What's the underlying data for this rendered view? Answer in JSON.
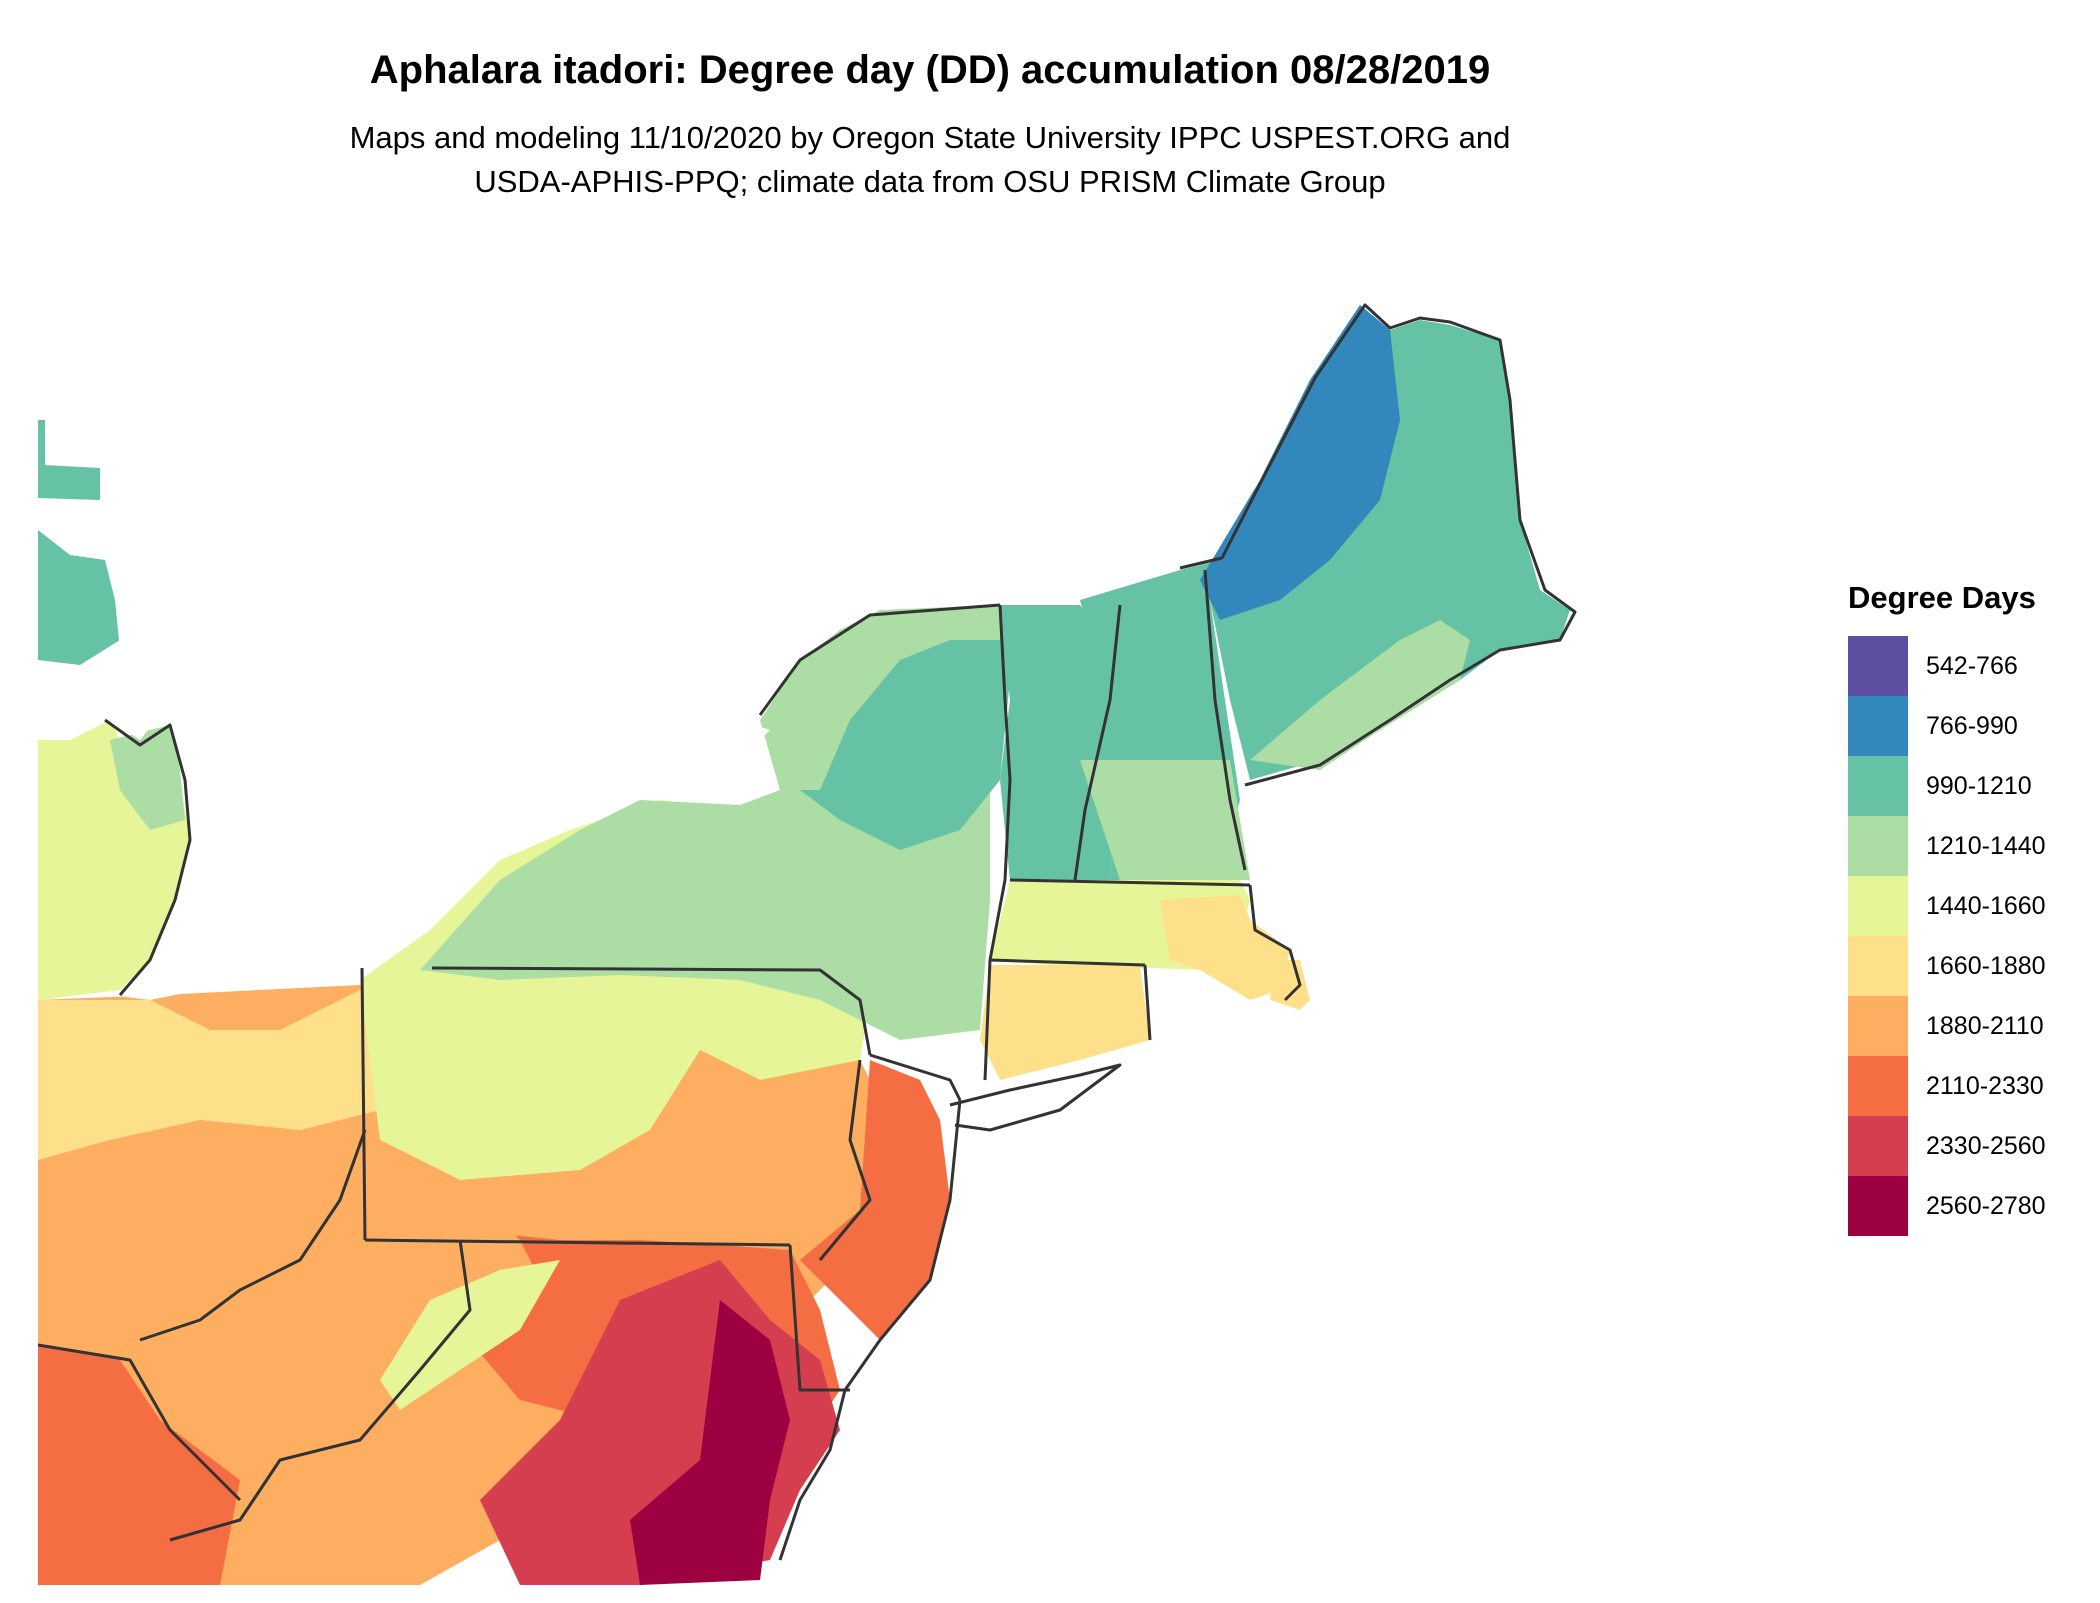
{
  "title": "Aphalara itadori: Degree day (DD) accumulation 08/28/2019",
  "subtitle_line1": "Maps and modeling 11/10/2020 by Oregon State University IPPC USPEST.ORG and",
  "subtitle_line2": "USDA-APHIS-PPQ; climate data from OSU PRISM Climate Group",
  "legend": {
    "title": "Degree Days",
    "items": [
      {
        "label": "542-766",
        "color": "#5e4fa2"
      },
      {
        "label": "766-990",
        "color": "#3288bd"
      },
      {
        "label": "990-1210",
        "color": "#66c2a5"
      },
      {
        "label": "1210-1440",
        "color": "#abdda4"
      },
      {
        "label": "1440-1660",
        "color": "#e6f598"
      },
      {
        "label": "1660-1880",
        "color": "#fee08b"
      },
      {
        "label": "1880-2110",
        "color": "#fdae61"
      },
      {
        "label": "2110-2330",
        "color": "#f46d43"
      },
      {
        "label": "2330-2560",
        "color": "#d53e4f"
      },
      {
        "label": "2560-2780",
        "color": "#9e0142"
      }
    ]
  },
  "border_color": "#333333"
}
